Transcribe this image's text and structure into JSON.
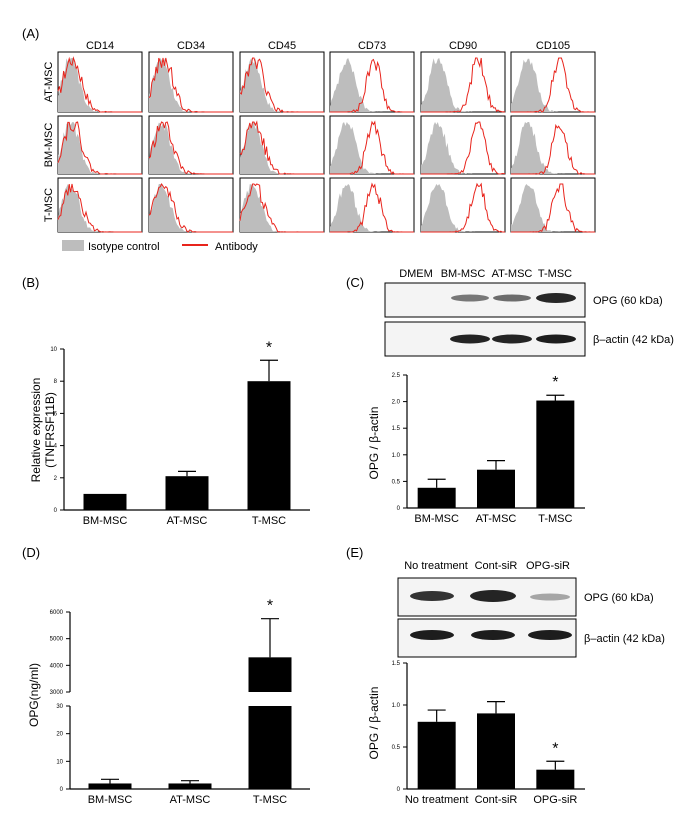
{
  "chart_data": [
    {
      "panel": "(A)",
      "type": "histogram-grid",
      "markers": [
        "CD14",
        "CD34",
        "CD45",
        "CD73",
        "CD90",
        "CD105"
      ],
      "rows": [
        "AT-MSC",
        "BM-MSC",
        "T-MSC"
      ],
      "legend": [
        {
          "label": "Isotype control",
          "color": "#bdbdbd"
        },
        {
          "label": "Antibody",
          "color": "#e8241c"
        }
      ],
      "positive_markers": [
        "CD73",
        "CD90",
        "CD105"
      ]
    },
    {
      "panel": "(B)",
      "type": "bar",
      "categories": [
        "BM-MSC",
        "AT-MSC",
        "T-MSC"
      ],
      "values": [
        1.0,
        2.1,
        8.0
      ],
      "errors": [
        0,
        0.3,
        1.3
      ],
      "ylabel": "Relative expression (TNFRSF11B)",
      "ylabel_lines": [
        "Relative expression",
        "(TNFRSF11B)"
      ],
      "ylim": [
        0,
        10
      ],
      "yticks": [
        "0",
        "2",
        "4",
        "6",
        "8",
        "10"
      ],
      "significance": [
        "",
        "",
        "*"
      ]
    },
    {
      "panel": "(C)",
      "type": "bar",
      "blot": {
        "lanes": [
          "DMEM",
          "BM-MSC",
          "AT-MSC",
          "T-MSC"
        ],
        "bands": [
          "OPG (60 kDa)",
          "β–actin (42 kDa)"
        ]
      },
      "categories": [
        "BM-MSC",
        "AT-MSC",
        "T-MSC"
      ],
      "values": [
        0.38,
        0.72,
        2.02
      ],
      "errors": [
        0.16,
        0.17,
        0.1
      ],
      "ylabel": "OPG / β-actin",
      "ylim": [
        0,
        2.5
      ],
      "yticks": [
        "0",
        "0.5",
        "1.0",
        "1.5",
        "2.0",
        "2.5"
      ],
      "significance": [
        "",
        "",
        "*"
      ]
    },
    {
      "panel": "(D)",
      "type": "bar",
      "categories": [
        "BM-MSC",
        "AT-MSC",
        "T-MSC"
      ],
      "values": [
        2,
        2,
        4300
      ],
      "errors": [
        1.5,
        1,
        1450
      ],
      "ylabel": "OPG(ng/ml)",
      "axis_break": {
        "lower": [
          0,
          30
        ],
        "upper": [
          3000,
          6000
        ]
      },
      "yticks_lower": [
        "0",
        "10",
        "20",
        "30"
      ],
      "yticks_upper": [
        "3000",
        "4000",
        "5000",
        "6000"
      ],
      "significance": [
        "",
        "",
        "*"
      ]
    },
    {
      "panel": "(E)",
      "type": "bar",
      "blot": {
        "lanes": [
          "No treatment",
          "Cont-siR",
          "OPG-siR"
        ],
        "bands": [
          "OPG (60 kDa)",
          "β–actin (42 kDa)"
        ]
      },
      "categories": [
        "No treatment",
        "Cont-siR",
        "OPG-siR"
      ],
      "values": [
        0.8,
        0.9,
        0.23
      ],
      "errors": [
        0.14,
        0.14,
        0.1
      ],
      "ylabel": "OPG / β-actin",
      "ylim": [
        0,
        1.5
      ],
      "yticks": [
        "0",
        "0.5",
        "1.0",
        "1.5"
      ],
      "significance": [
        "",
        "",
        "*"
      ]
    }
  ]
}
